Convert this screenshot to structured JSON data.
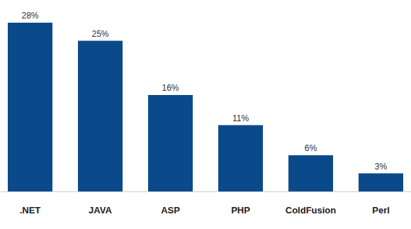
{
  "chart_data": {
    "type": "bar",
    "categories": [
      ".NET",
      "JAVA",
      "ASP",
      "PHP",
      "ColdFusion",
      "Perl"
    ],
    "values": [
      28,
      25,
      16,
      11,
      6,
      3
    ],
    "value_labels": [
      "28%",
      "25%",
      "16%",
      "11%",
      "6%",
      "3%"
    ],
    "color": "#0b4a8a",
    "data_labels": true,
    "tick_labels": "x"
  }
}
